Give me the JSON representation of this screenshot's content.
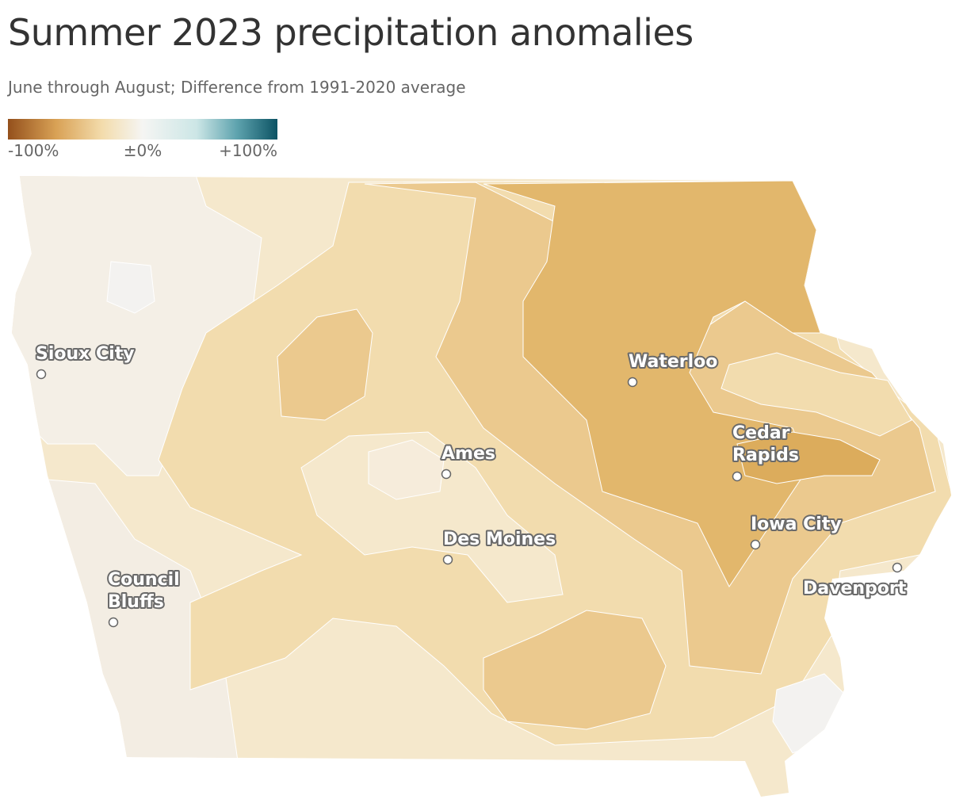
{
  "title": "Summer 2023 precipitation anomalies",
  "subtitle": "June through August; Difference from 1991-2020 average",
  "legend": {
    "labels": [
      "-100%",
      "±0%",
      "+100%"
    ]
  },
  "cities": [
    {
      "lines": [
        "Sioux City"
      ]
    },
    {
      "lines": [
        "Waterloo"
      ]
    },
    {
      "lines": [
        "Cedar",
        "Rapids"
      ]
    },
    {
      "lines": [
        "Ames"
      ]
    },
    {
      "lines": [
        "Des Moines"
      ]
    },
    {
      "lines": [
        "Iowa City"
      ]
    },
    {
      "lines": [
        "Council",
        "Bluffs"
      ]
    },
    {
      "lines": [
        "Davenport"
      ]
    }
  ]
}
